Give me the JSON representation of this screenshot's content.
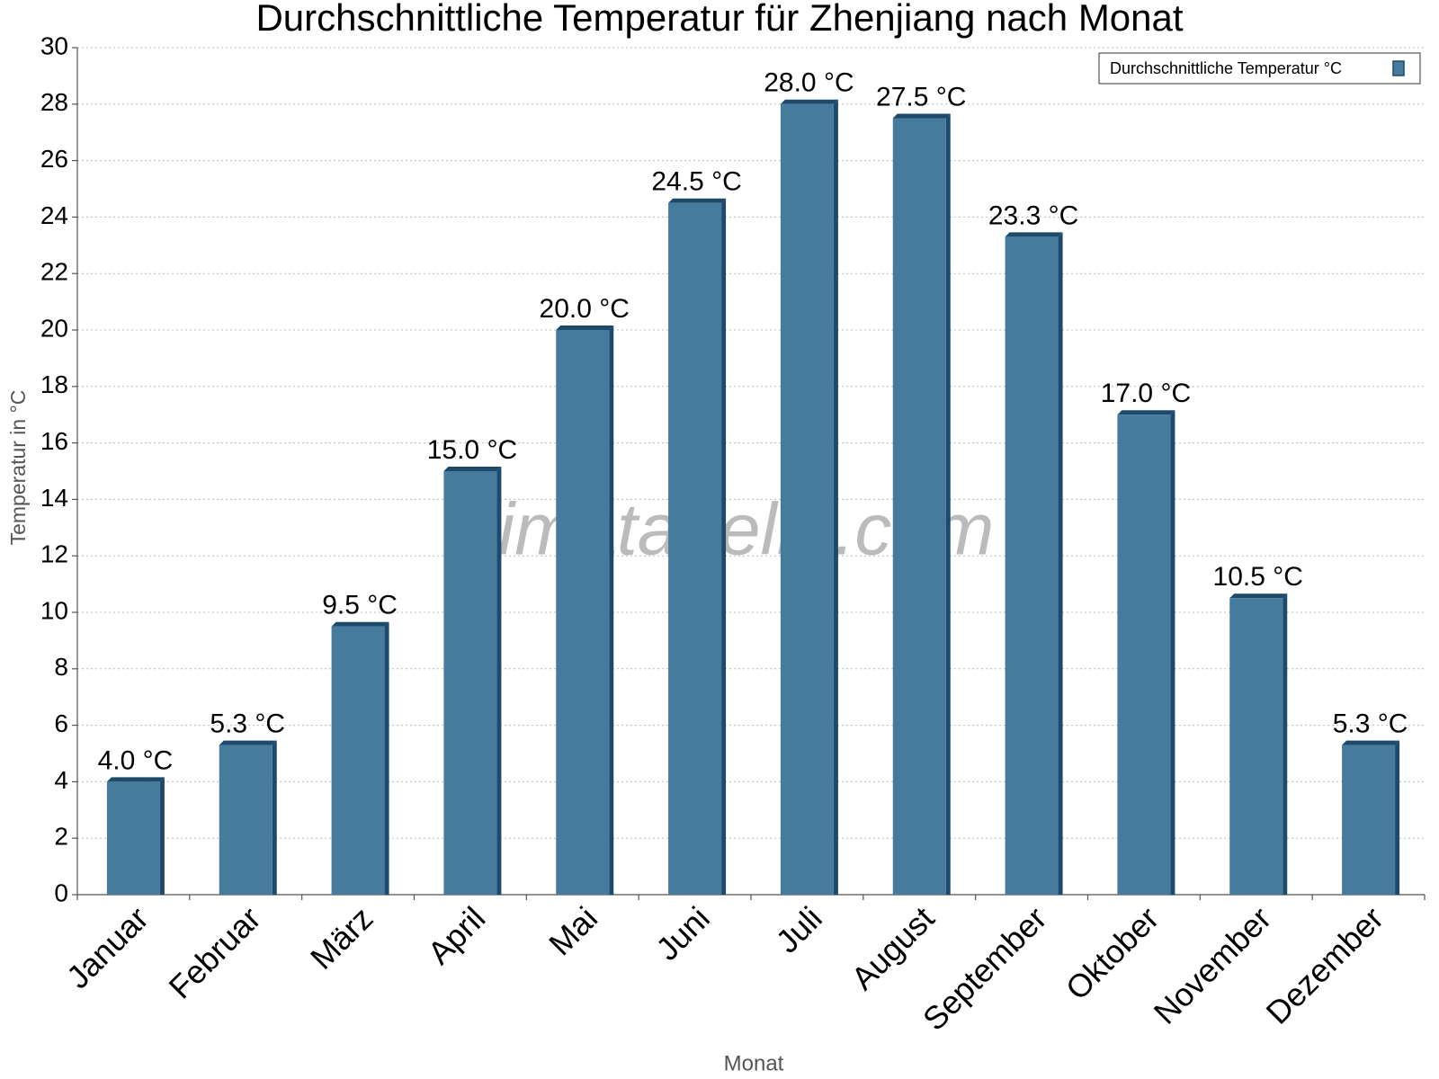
{
  "chart_data": {
    "type": "bar",
    "title": "Durchschnittliche Temperatur für Zhenjiang nach Monat",
    "x_label": "Monat",
    "y_label": "Temperatur in °C",
    "watermark": "klimatabelle.com",
    "categories": [
      "Januar",
      "Februar",
      "März",
      "April",
      "Mai",
      "Juni",
      "Juli",
      "August",
      "September",
      "Oktober",
      "November",
      "Dezember"
    ],
    "series": [
      {
        "name": "Durchschnittliche Temperatur °C",
        "color": "#467b9e",
        "values": [
          4.0,
          5.3,
          9.5,
          15.0,
          20.0,
          24.5,
          28.0,
          27.5,
          23.3,
          17.0,
          10.5,
          5.3
        ],
        "value_labels": [
          "4.0 °C",
          "5.3 °C",
          "9.5 °C",
          "15.0 °C",
          "20.0 °C",
          "24.5 °C",
          "28.0 °C",
          "27.5 °C",
          "23.3 °C",
          "17.0 °C",
          "10.5 °C",
          "5.3 °C"
        ]
      }
    ],
    "ylim": [
      0,
      30
    ],
    "yticks": [
      0,
      2,
      4,
      6,
      8,
      10,
      12,
      14,
      16,
      18,
      20,
      22,
      24,
      26,
      28,
      30
    ],
    "grid": true,
    "legend": "top-right"
  }
}
